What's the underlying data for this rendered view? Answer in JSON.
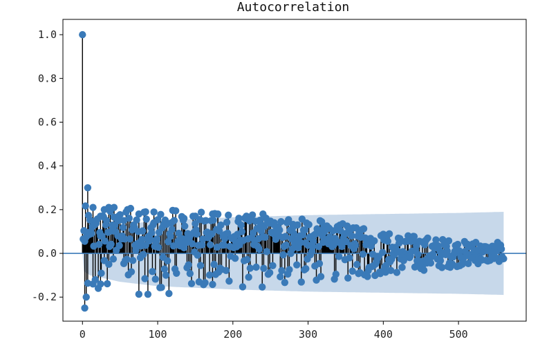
{
  "chart_data": {
    "type": "stem",
    "title": "Autocorrelation",
    "xlabel": "",
    "ylabel": "",
    "xlim": [
      -26,
      590
    ],
    "ylim": [
      -0.31,
      1.07
    ],
    "x_ticks": [
      0,
      100,
      200,
      300,
      400,
      500
    ],
    "y_ticks": [
      -0.2,
      0.0,
      0.2,
      0.4,
      0.6,
      0.8,
      1.0
    ],
    "x_tick_labels": [
      "0",
      "100",
      "200",
      "300",
      "400",
      "500"
    ],
    "y_tick_labels": [
      "-0.2",
      "0.0",
      "0.2",
      "0.4",
      "0.6",
      "0.8",
      "1.0"
    ],
    "n_lags": 560,
    "grid": false,
    "confidence_band": {
      "points": [
        [
          0,
          0.0
        ],
        [
          1,
          0.08
        ],
        [
          10,
          0.1
        ],
        [
          50,
          0.13
        ],
        [
          100,
          0.15
        ],
        [
          200,
          0.165
        ],
        [
          300,
          0.175
        ],
        [
          400,
          0.18
        ],
        [
          500,
          0.185
        ],
        [
          560,
          0.19
        ]
      ]
    },
    "highlight_points": [
      {
        "lag": 0,
        "value": 1.0
      },
      {
        "lag": 3,
        "value": -0.25
      },
      {
        "lag": 5,
        "value": -0.2
      },
      {
        "lag": 7,
        "value": 0.3
      },
      {
        "lag": 14,
        "value": 0.21
      },
      {
        "lag": 24,
        "value": 0.17
      },
      {
        "lag": 29,
        "value": 0.2
      },
      {
        "lag": 35,
        "value": 0.21
      },
      {
        "lag": 42,
        "value": 0.21
      },
      {
        "lag": 14,
        "value": -0.14
      },
      {
        "lag": 24,
        "value": -0.14
      },
      {
        "lag": 48,
        "value": 0.15
      },
      {
        "lag": 55,
        "value": 0.15
      },
      {
        "lag": 75,
        "value": 0.18
      },
      {
        "lag": 84,
        "value": 0.19
      },
      {
        "lag": 95,
        "value": 0.14
      },
      {
        "lag": 135,
        "value": 0.16
      },
      {
        "lag": 150,
        "value": 0.17
      },
      {
        "lag": 173,
        "value": 0.18
      },
      {
        "lag": 180,
        "value": 0.18
      },
      {
        "lag": 240,
        "value": 0.18
      },
      {
        "lag": 255,
        "value": 0.14
      },
      {
        "lag": 280,
        "value": 0.12
      },
      {
        "lag": 320,
        "value": 0.11
      },
      {
        "lag": 297,
        "value": -0.07
      },
      {
        "lag": 440,
        "value": 0.06
      },
      {
        "lag": 450,
        "value": -0.04
      },
      {
        "lag": 523,
        "value": 0.05
      },
      {
        "lag": 552,
        "value": 0.05
      }
    ],
    "colors": {
      "marker": "#3a7ab8",
      "stem": "#000000",
      "band": "#c7d8ea",
      "zero_line": "#3a7ab8",
      "axis": "#000000"
    }
  }
}
